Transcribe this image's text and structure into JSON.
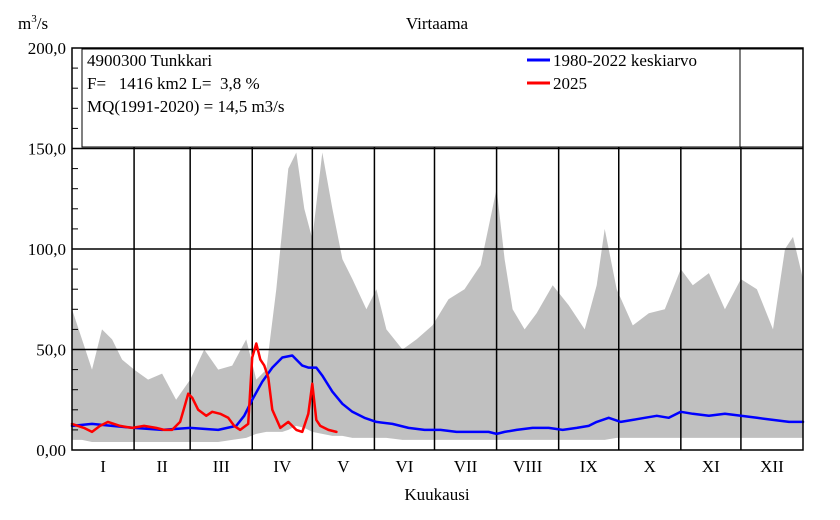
{
  "chart_data": {
    "type": "line",
    "title": "Virtaama",
    "ylabel": "m3/s",
    "ylabel_base": "m",
    "ylabel_sup": "3",
    "ylabel_rest": "/s",
    "xlabel": "Kuukausi",
    "ylim": [
      0,
      200
    ],
    "yticks": [
      "0,00",
      "50,0",
      "100,0",
      "150,0",
      "200,0"
    ],
    "ytick_values": [
      0,
      50,
      100,
      150,
      200
    ],
    "x_unit": "day of year",
    "xlim": [
      0,
      365
    ],
    "months": [
      "I",
      "II",
      "III",
      "IV",
      "V",
      "VI",
      "VII",
      "VIII",
      "IX",
      "X",
      "XI",
      "XII"
    ],
    "info_box": {
      "line1": "4900300 Tunkkari",
      "line2": "F=   1416 km2 L=  3,8 %",
      "line3": "MQ(1991-2020) = 14,5 m3/s"
    },
    "legend": {
      "placement": "top-right",
      "items": [
        {
          "label": "1980-2022 keskiarvo",
          "color": "#0000ff"
        },
        {
          "label": "2025",
          "color": "#ff0000"
        }
      ]
    },
    "grid": true,
    "range_band_color": "#c0c0c0",
    "range_band": {
      "name": "1980-2022 min-max",
      "x": [
        0,
        5,
        10,
        15,
        20,
        25,
        31,
        38,
        45,
        52,
        59,
        66,
        73,
        80,
        87,
        92,
        97,
        102,
        105,
        108,
        112,
        116,
        120,
        125,
        130,
        135,
        140,
        147,
        152,
        157,
        165,
        172,
        180,
        188,
        196,
        204,
        212,
        216,
        220,
        226,
        232,
        240,
        248,
        256,
        262,
        266,
        272,
        280,
        288,
        296,
        304,
        310,
        318,
        326,
        334,
        342,
        350,
        356,
        360,
        365
      ],
      "max": [
        70,
        55,
        40,
        60,
        55,
        45,
        40,
        35,
        38,
        25,
        35,
        50,
        40,
        42,
        55,
        35,
        40,
        80,
        110,
        140,
        148,
        120,
        105,
        148,
        120,
        95,
        85,
        70,
        80,
        60,
        50,
        55,
        62,
        75,
        80,
        92,
        130,
        95,
        70,
        60,
        68,
        82,
        72,
        60,
        82,
        110,
        80,
        62,
        68,
        70,
        90,
        82,
        88,
        70,
        85,
        80,
        60,
        100,
        106,
        85
      ],
      "min": [
        5,
        5,
        4,
        4,
        4,
        4,
        4,
        4,
        4,
        4,
        4,
        4,
        4,
        5,
        6,
        8,
        9,
        9,
        9,
        10,
        12,
        11,
        9,
        8,
        7,
        7,
        6,
        6,
        6,
        6,
        5,
        5,
        5,
        5,
        5,
        5,
        5,
        5,
        5,
        5,
        5,
        5,
        5,
        5,
        5,
        5,
        6,
        6,
        6,
        6,
        6,
        6,
        6,
        6,
        6,
        6,
        6,
        6,
        6,
        6
      ]
    },
    "series": [
      {
        "name": "1980-2022 keskiarvo",
        "color": "#0000ff",
        "x": [
          0,
          10,
          20,
          31,
          45,
          59,
          73,
          82,
          86,
          90,
          95,
          100,
          105,
          110,
          115,
          118,
          122,
          125,
          130,
          135,
          140,
          146,
          152,
          160,
          168,
          176,
          184,
          192,
          200,
          208,
          212,
          216,
          222,
          230,
          238,
          245,
          252,
          258,
          262,
          268,
          274,
          280,
          286,
          292,
          298,
          304,
          310,
          318,
          326,
          334,
          342,
          350,
          358,
          365
        ],
        "y": [
          12,
          13,
          12,
          11,
          10,
          11,
          10,
          12,
          17,
          25,
          34,
          41,
          46,
          47,
          42,
          41,
          41,
          37,
          29,
          23,
          19,
          16,
          14,
          13,
          11,
          10,
          10,
          9,
          9,
          9,
          8,
          9,
          10,
          11,
          11,
          10,
          11,
          12,
          14,
          16,
          14,
          15,
          16,
          17,
          16,
          19,
          18,
          17,
          18,
          17,
          16,
          15,
          14,
          14
        ]
      },
      {
        "name": "2025",
        "color": "#ff0000",
        "x": [
          0,
          6,
          10,
          14,
          18,
          24,
          30,
          36,
          42,
          46,
          50,
          54,
          56,
          58,
          60,
          63,
          67,
          70,
          74,
          78,
          81,
          84,
          88,
          90,
          92,
          94,
          96,
          98,
          100,
          104,
          108,
          112,
          115,
          118,
          120,
          122,
          124,
          128,
          132
        ],
        "y": [
          13,
          11,
          9,
          12,
          14,
          12,
          11,
          12,
          11,
          10,
          10,
          14,
          21,
          28,
          26,
          20,
          17,
          19,
          18,
          16,
          12,
          10,
          13,
          46,
          53,
          45,
          42,
          36,
          20,
          11,
          14,
          10,
          9,
          18,
          33,
          15,
          12,
          10,
          9
        ]
      }
    ]
  }
}
